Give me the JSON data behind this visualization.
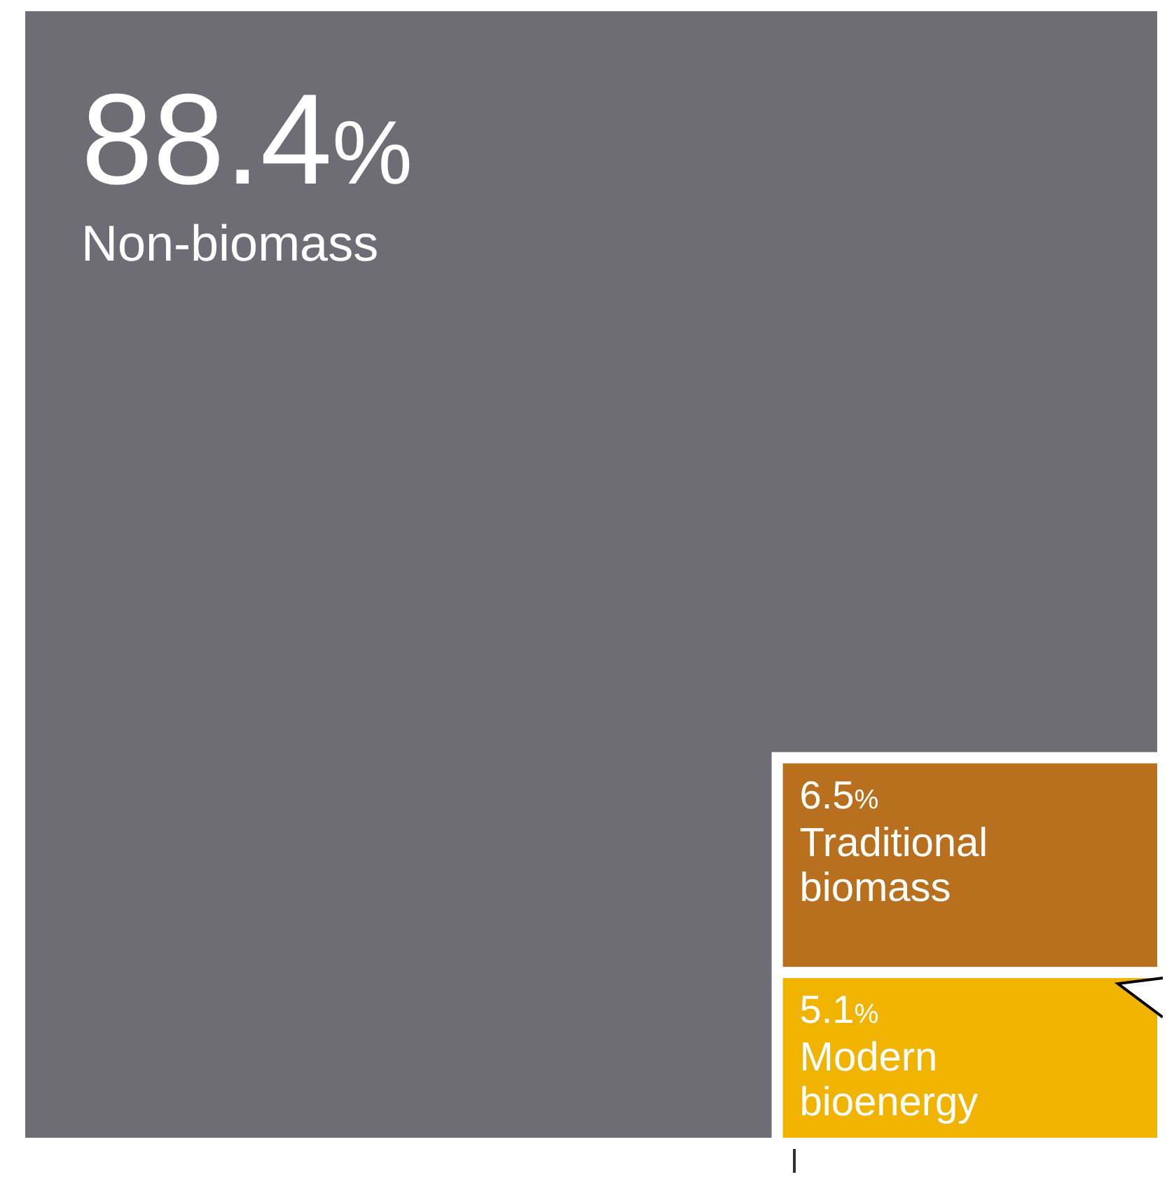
{
  "chart_data": {
    "type": "other",
    "categories": [
      "Non-biomass",
      "Traditional biomass",
      "Modern bioenergy"
    ],
    "values": [
      88.4,
      6.5,
      5.1
    ],
    "value_labels": [
      "88.4%",
      "6.5%",
      "5.1%"
    ],
    "colors": [
      "#6e6d75",
      "#b8701e",
      "#f0b400"
    ]
  }
}
